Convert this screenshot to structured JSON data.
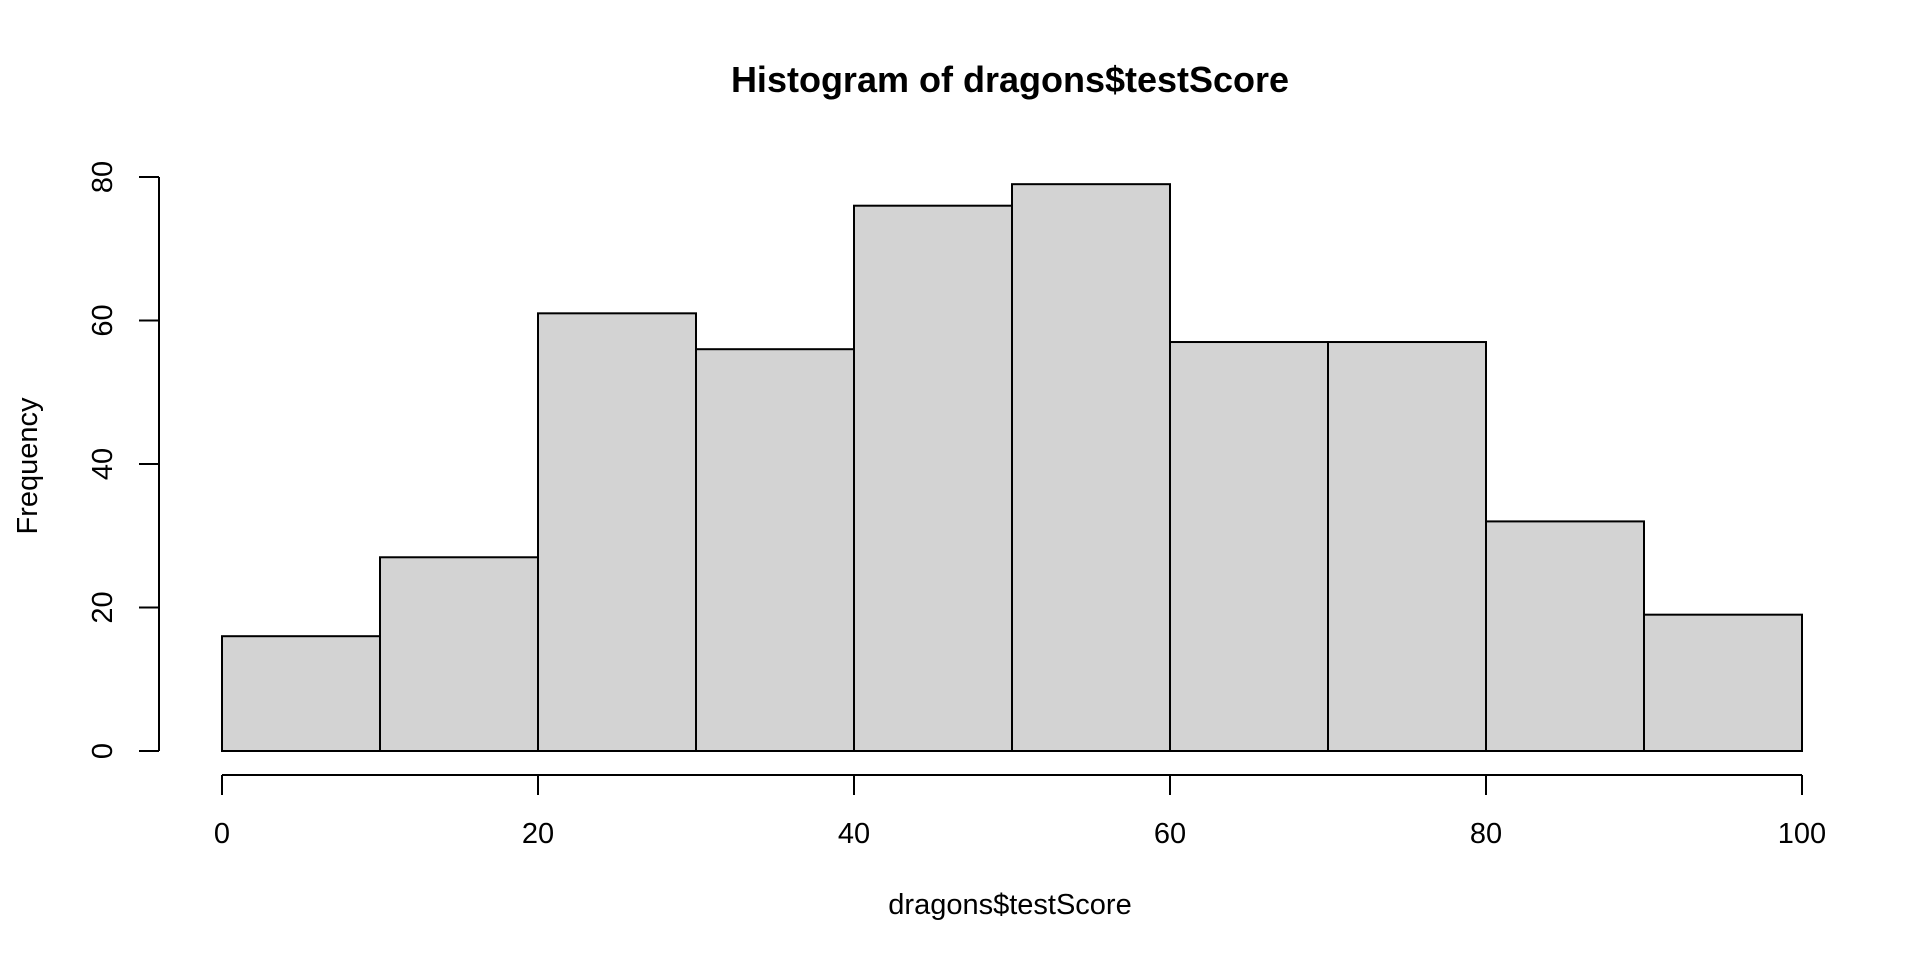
{
  "chart_data": {
    "type": "bar",
    "title": "Histogram of dragons$testScore",
    "xlabel": "dragons$testScore",
    "ylabel": "Frequency",
    "bins": [
      {
        "start": 0,
        "end": 10,
        "count": 16
      },
      {
        "start": 10,
        "end": 20,
        "count": 27
      },
      {
        "start": 20,
        "end": 30,
        "count": 61
      },
      {
        "start": 30,
        "end": 40,
        "count": 56
      },
      {
        "start": 40,
        "end": 50,
        "count": 76
      },
      {
        "start": 50,
        "end": 60,
        "count": 79
      },
      {
        "start": 60,
        "end": 70,
        "count": 57
      },
      {
        "start": 70,
        "end": 80,
        "count": 57
      },
      {
        "start": 80,
        "end": 90,
        "count": 32
      },
      {
        "start": 90,
        "end": 100,
        "count": 19
      }
    ],
    "xlim": [
      0,
      100
    ],
    "ylim": [
      0,
      80
    ],
    "xticks": [
      0,
      20,
      40,
      60,
      80,
      100
    ],
    "yticks": [
      0,
      20,
      40,
      60,
      80
    ],
    "bar_color": "#d3d3d3",
    "grid": false,
    "legend": false
  }
}
